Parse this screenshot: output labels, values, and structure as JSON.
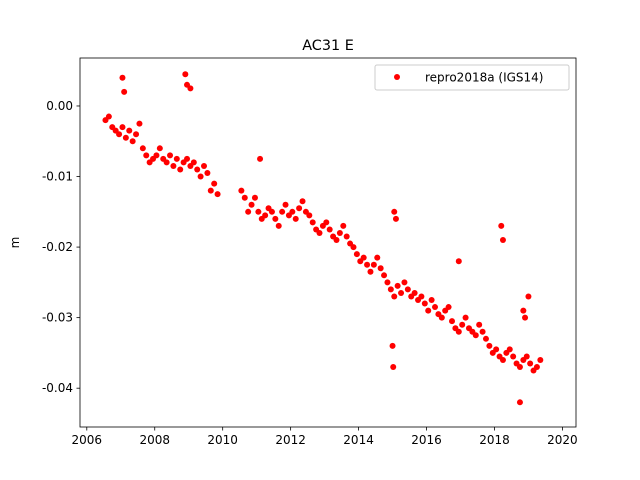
{
  "chart_data": {
    "type": "scatter",
    "title": "AC31 E",
    "xlabel": "",
    "ylabel": "m",
    "xlim": [
      2005.8,
      2020.4
    ],
    "ylim": [
      -0.0455,
      0.0068
    ],
    "xticks": [
      2006,
      2008,
      2010,
      2012,
      2014,
      2016,
      2018,
      2020
    ],
    "xtick_labels": [
      "2006",
      "2008",
      "2010",
      "2012",
      "2014",
      "2016",
      "2018",
      "2020"
    ],
    "yticks": [
      0.0,
      -0.01,
      -0.02,
      -0.03,
      -0.04
    ],
    "ytick_labels": [
      "0.00",
      "-0.01",
      "-0.02",
      "-0.03",
      "-0.04"
    ],
    "grid": false,
    "legend_position": "upper right",
    "series": [
      {
        "name": "repro2018a (IGS14)",
        "color": "#ff0000",
        "marker": "circle",
        "x": [
          2006.55,
          2006.65,
          2006.75,
          2006.85,
          2006.95,
          2007.05,
          2007.15,
          2007.25,
          2007.35,
          2007.45,
          2007.55,
          2007.65,
          2007.75,
          2007.85,
          2007.95,
          2008.05,
          2008.15,
          2008.25,
          2008.35,
          2008.45,
          2008.55,
          2008.65,
          2008.75,
          2008.85,
          2008.95,
          2009.05,
          2009.15,
          2009.25,
          2009.35,
          2009.45,
          2009.55,
          2009.65,
          2009.75,
          2009.85,
          2010.55,
          2010.65,
          2010.75,
          2010.85,
          2010.95,
          2011.05,
          2011.15,
          2011.25,
          2011.35,
          2011.45,
          2011.55,
          2011.65,
          2011.75,
          2011.85,
          2011.95,
          2012.05,
          2012.15,
          2012.25,
          2012.35,
          2012.45,
          2012.55,
          2012.65,
          2012.75,
          2012.85,
          2012.95,
          2013.05,
          2013.15,
          2013.25,
          2013.35,
          2013.45,
          2013.55,
          2013.65,
          2013.75,
          2013.85,
          2013.95,
          2014.05,
          2014.15,
          2014.25,
          2014.35,
          2014.45,
          2014.55,
          2014.65,
          2014.75,
          2014.85,
          2014.95,
          2015.05,
          2015.15,
          2015.25,
          2015.35,
          2015.45,
          2015.55,
          2015.65,
          2015.75,
          2015.85,
          2015.95,
          2016.05,
          2016.15,
          2016.25,
          2016.35,
          2016.45,
          2016.55,
          2016.65,
          2016.75,
          2016.85,
          2016.95,
          2017.05,
          2017.15,
          2017.25,
          2017.35,
          2017.45,
          2017.55,
          2017.65,
          2017.75,
          2017.85,
          2017.95,
          2018.05,
          2018.15,
          2018.25,
          2018.35,
          2018.45,
          2018.55,
          2018.65,
          2018.75,
          2018.85,
          2018.95,
          2019.05,
          2019.15,
          2019.25,
          2019.35,
          2007.05,
          2007.1,
          2008.9,
          2008.95,
          2009.05,
          2011.1,
          2015.05,
          2015.1,
          2016.95,
          2018.2,
          2018.25,
          2019.0,
          2018.75,
          2015.0,
          2015.02,
          2018.85,
          2018.9
        ],
        "y": [
          -0.002,
          -0.0015,
          -0.003,
          -0.0035,
          -0.004,
          -0.003,
          -0.0045,
          -0.0035,
          -0.005,
          -0.004,
          -0.0025,
          -0.006,
          -0.007,
          -0.008,
          -0.0075,
          -0.007,
          -0.006,
          -0.0075,
          -0.008,
          -0.007,
          -0.0085,
          -0.0075,
          -0.009,
          -0.008,
          -0.0075,
          -0.0085,
          -0.008,
          -0.009,
          -0.01,
          -0.0085,
          -0.0095,
          -0.012,
          -0.011,
          -0.0125,
          -0.012,
          -0.013,
          -0.015,
          -0.014,
          -0.013,
          -0.015,
          -0.016,
          -0.0155,
          -0.0145,
          -0.015,
          -0.016,
          -0.017,
          -0.015,
          -0.014,
          -0.0155,
          -0.015,
          -0.016,
          -0.0145,
          -0.0135,
          -0.015,
          -0.0155,
          -0.0165,
          -0.0175,
          -0.018,
          -0.017,
          -0.0165,
          -0.0175,
          -0.0185,
          -0.019,
          -0.018,
          -0.017,
          -0.0185,
          -0.0195,
          -0.02,
          -0.021,
          -0.022,
          -0.0215,
          -0.0225,
          -0.0235,
          -0.0225,
          -0.0215,
          -0.023,
          -0.024,
          -0.025,
          -0.026,
          -0.027,
          -0.0255,
          -0.0265,
          -0.025,
          -0.026,
          -0.027,
          -0.0265,
          -0.0275,
          -0.027,
          -0.028,
          -0.029,
          -0.0275,
          -0.0285,
          -0.0295,
          -0.03,
          -0.029,
          -0.0285,
          -0.0305,
          -0.0315,
          -0.032,
          -0.031,
          -0.03,
          -0.0315,
          -0.032,
          -0.0325,
          -0.031,
          -0.032,
          -0.033,
          -0.034,
          -0.035,
          -0.0345,
          -0.0355,
          -0.036,
          -0.035,
          -0.0345,
          -0.0355,
          -0.0365,
          -0.037,
          -0.036,
          -0.0355,
          -0.0365,
          -0.0375,
          -0.037,
          -0.036,
          0.004,
          0.002,
          0.0045,
          0.003,
          0.0025,
          -0.0075,
          -0.015,
          -0.016,
          -0.022,
          -0.017,
          -0.019,
          -0.027,
          -0.042,
          -0.034,
          -0.037,
          -0.029,
          -0.03
        ]
      }
    ]
  }
}
